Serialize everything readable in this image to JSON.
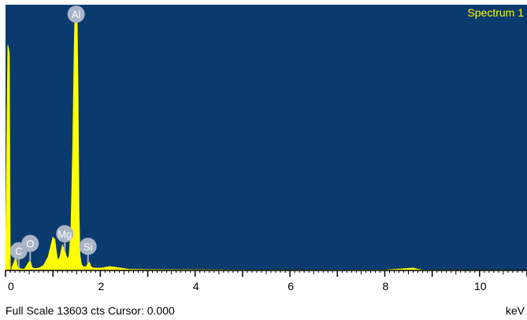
{
  "chart_data": {
    "type": "area",
    "title": "Spectrum 1",
    "xlabel": "keV",
    "xlim": [
      0,
      11
    ],
    "ylim": [
      0,
      13603
    ],
    "x_ticks": [
      0,
      2,
      4,
      6,
      8,
      10
    ],
    "grid": false,
    "colors": {
      "plot_bg": "#0b3a6e",
      "trace": "#ffff00",
      "marker": "#a9b4c8",
      "marker_text": "#ffffff",
      "axis": "#000000"
    },
    "x": [
      0.0,
      0.05,
      0.08,
      0.1,
      0.12,
      0.14,
      0.18,
      0.22,
      0.25,
      0.28,
      0.32,
      0.4,
      0.48,
      0.52,
      0.56,
      0.62,
      0.7,
      0.8,
      0.9,
      0.95,
      1.0,
      1.04,
      1.07,
      1.1,
      1.15,
      1.2,
      1.25,
      1.3,
      1.34,
      1.38,
      1.42,
      1.45,
      1.47,
      1.49,
      1.51,
      1.53,
      1.55,
      1.57,
      1.6,
      1.64,
      1.7,
      1.74,
      1.77,
      1.8,
      1.85,
      2.0,
      2.2,
      2.6,
      3.0,
      4.0,
      5.0,
      6.0,
      7.0,
      8.0,
      8.6,
      8.7,
      8.8,
      9.0,
      10.0,
      11.0
    ],
    "y": [
      0,
      11600,
      11200,
      0,
      0,
      180,
      420,
      700,
      180,
      120,
      80,
      60,
      380,
      500,
      150,
      90,
      120,
      250,
      700,
      1200,
      1700,
      1600,
      1000,
      500,
      700,
      1300,
      1000,
      600,
      700,
      2000,
      6500,
      11500,
      13603,
      13603,
      13000,
      9000,
      3000,
      800,
      300,
      200,
      180,
      350,
      420,
      200,
      130,
      110,
      200,
      60,
      40,
      30,
      20,
      15,
      20,
      20,
      120,
      60,
      20,
      15,
      10,
      5
    ],
    "peaks": [
      {
        "label": "C",
        "x": 0.28,
        "y": 120
      },
      {
        "label": "O",
        "x": 0.52,
        "y": 500
      },
      {
        "label": "Mg",
        "x": 1.25,
        "y": 1000
      },
      {
        "label": "Al",
        "x": 1.49,
        "y": 13603
      },
      {
        "label": "Si",
        "x": 1.74,
        "y": 350
      }
    ]
  },
  "status_bar": {
    "left": "Full Scale 13603 cts Cursor: 0.000",
    "unit": "keV"
  }
}
